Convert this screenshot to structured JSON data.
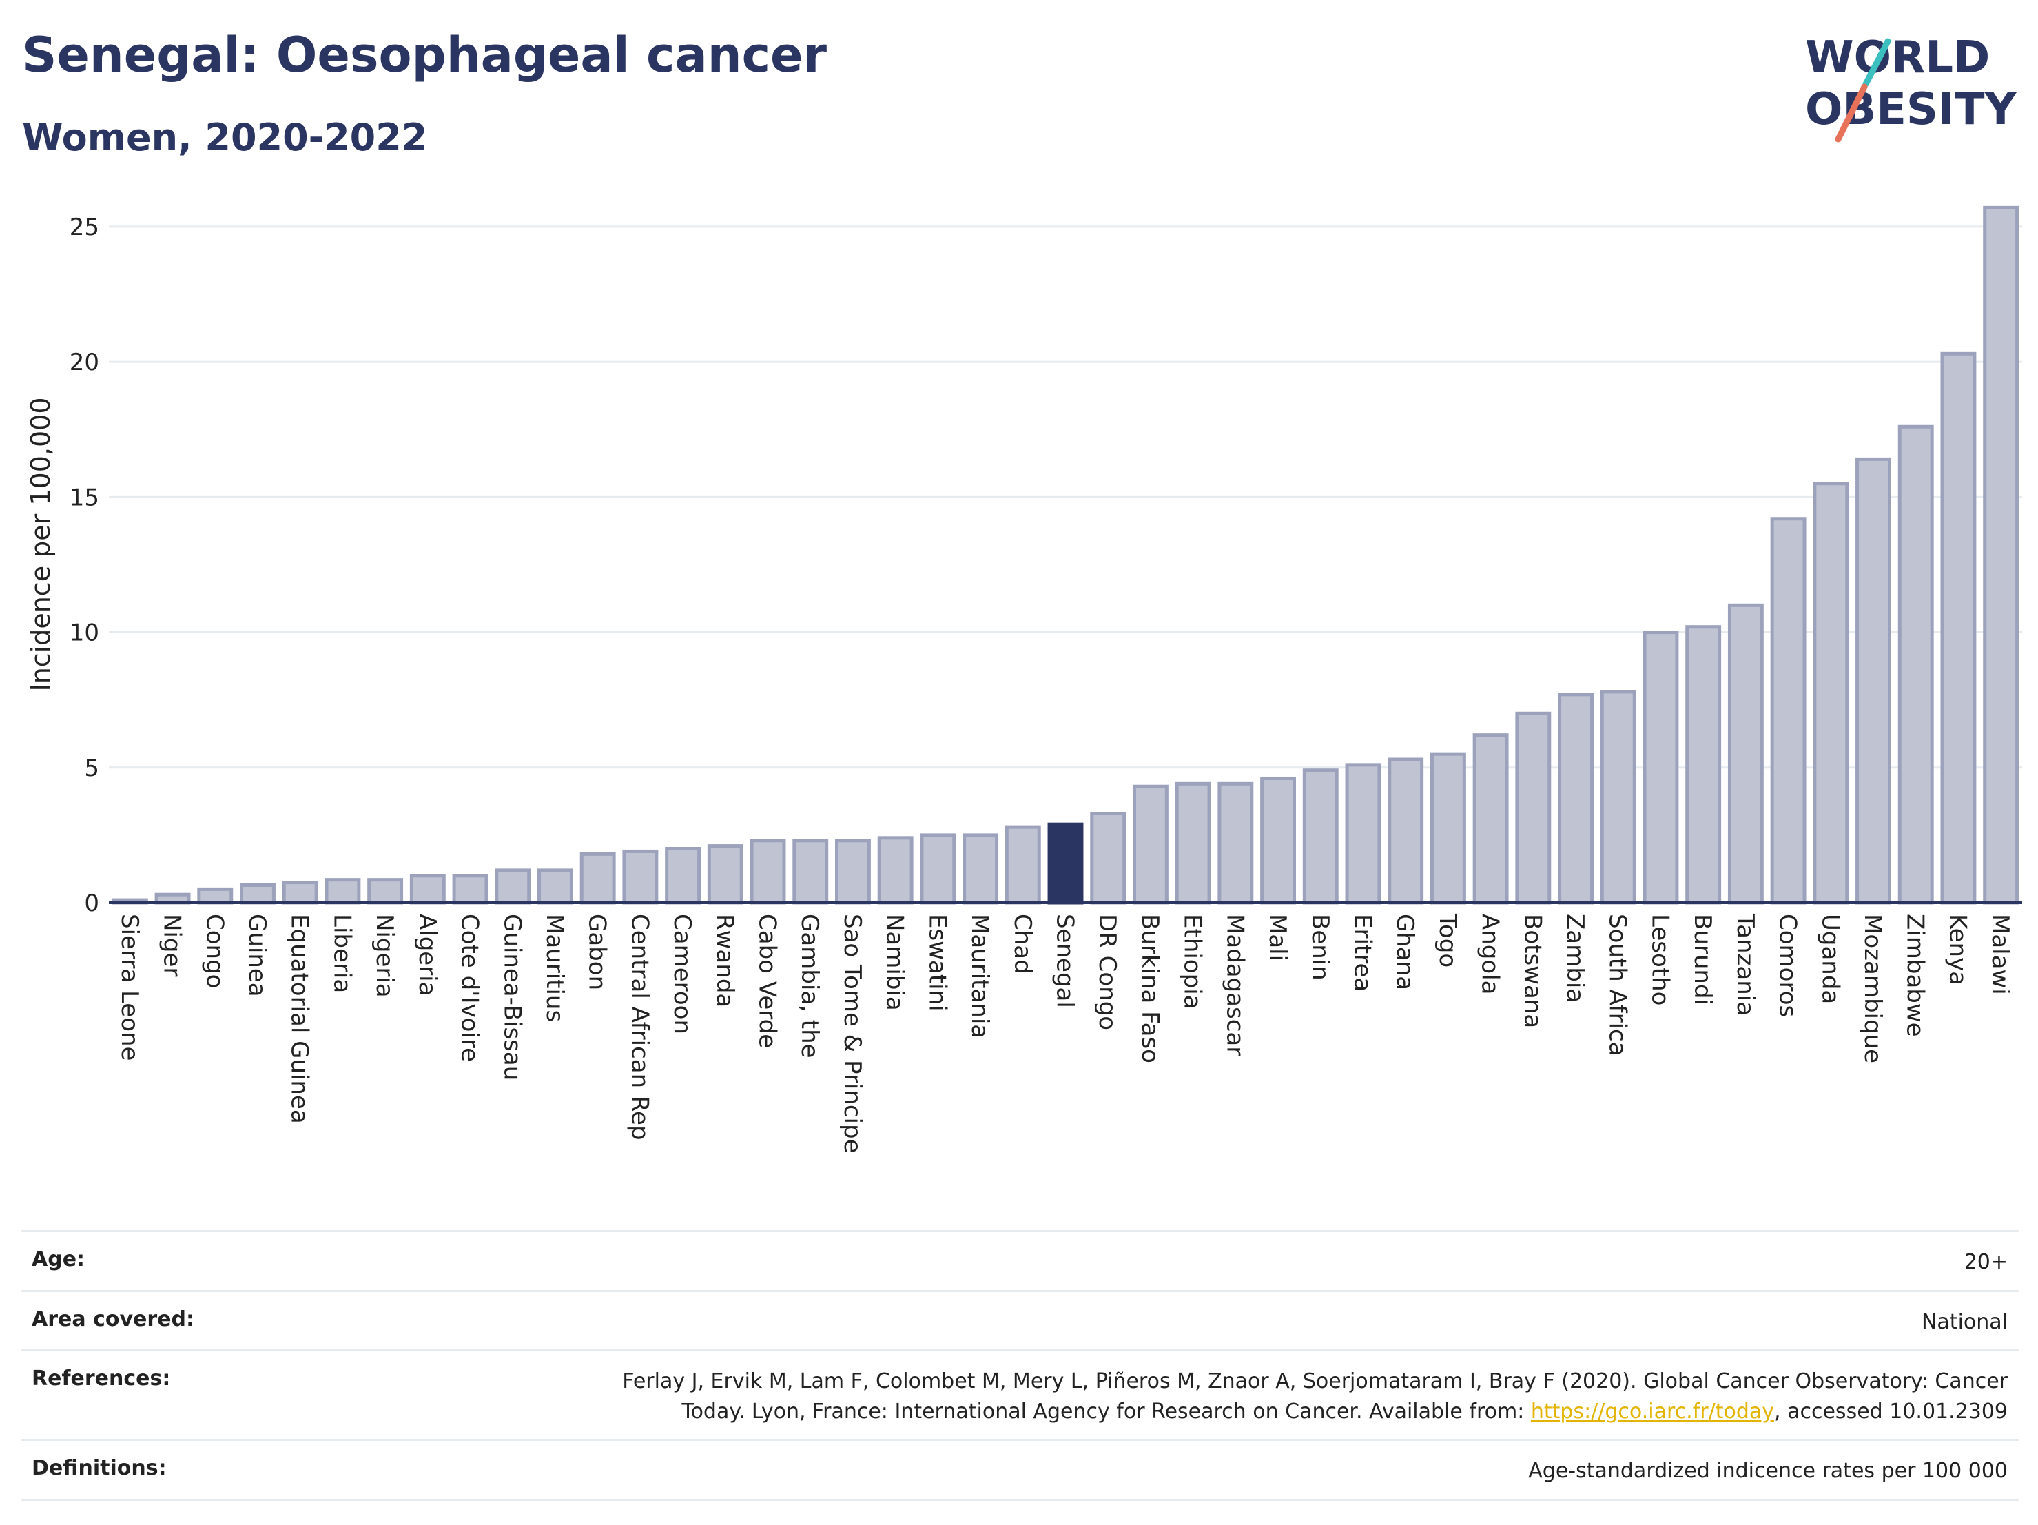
{
  "header": {
    "title": "Senegal: Oesophageal cancer",
    "subtitle": "Women, 2020-2022"
  },
  "logo": {
    "line1": "WORLD",
    "line2": "OBESITY",
    "accent_teal": "#3bbfbf",
    "accent_coral": "#e8715a"
  },
  "chart_data": {
    "type": "bar",
    "ylabel": "Incidence per 100,000",
    "ylim": [
      0,
      26.5
    ],
    "yticks": [
      0,
      5,
      10,
      15,
      20,
      25
    ],
    "highlight": "Senegal",
    "colors": {
      "bar": "#bfc3d2",
      "bar_stroke": "#9ca2bb",
      "highlight": "#2b3561"
    },
    "categories": [
      "Sierra Leone",
      "Niger",
      "Congo",
      "Guinea",
      "Equatorial Guinea",
      "Liberia",
      "Nigeria",
      "Algeria",
      "Cote d'Ivoire",
      "Guinea-Bissau",
      "Mauritius",
      "Gabon",
      "Central African Rep",
      "Cameroon",
      "Rwanda",
      "Cabo Verde",
      "Gambia, the",
      "Sao Tome & Principe",
      "Namibia",
      "Eswatini",
      "Mauritania",
      "Chad",
      "Senegal",
      "DR Congo",
      "Burkina Faso",
      "Ethiopia",
      "Madagascar",
      "Mali",
      "Benin",
      "Eritrea",
      "Ghana",
      "Togo",
      "Angola",
      "Botswana",
      "Zambia",
      "South Africa",
      "Lesotho",
      "Burundi",
      "Tanzania",
      "Comoros",
      "Uganda",
      "Mozambique",
      "Zimbabwe",
      "Kenya",
      "Malawi"
    ],
    "values": [
      0.1,
      0.3,
      0.5,
      0.65,
      0.75,
      0.85,
      0.85,
      1.0,
      1.0,
      1.2,
      1.2,
      1.8,
      1.9,
      2.0,
      2.1,
      2.3,
      2.3,
      2.3,
      2.4,
      2.5,
      2.5,
      2.8,
      2.9,
      3.3,
      4.3,
      4.4,
      4.4,
      4.6,
      4.9,
      5.1,
      5.3,
      5.5,
      6.2,
      7.0,
      7.7,
      7.8,
      10.0,
      10.2,
      11.0,
      14.2,
      15.5,
      16.4,
      17.6,
      20.3,
      25.7
    ]
  },
  "info": {
    "rows": [
      {
        "label": "Age:",
        "value": "20+"
      },
      {
        "label": "Area covered:",
        "value": "National"
      },
      {
        "label": "References:",
        "value_pre": "Ferlay J, Ervik M, Lam F, Colombet M, Mery L, Piñeros M, Znaor A, Soerjomataram I, Bray F (2020). Global Cancer Observatory: Cancer Today. Lyon, France: International Agency for Research on Cancer. Available from: ",
        "link": "https://gco.iarc.fr/today",
        "value_post": ", accessed 10.01.2309"
      },
      {
        "label": "Definitions:",
        "value": "Age-standardized indicence rates per 100 000"
      }
    ]
  }
}
